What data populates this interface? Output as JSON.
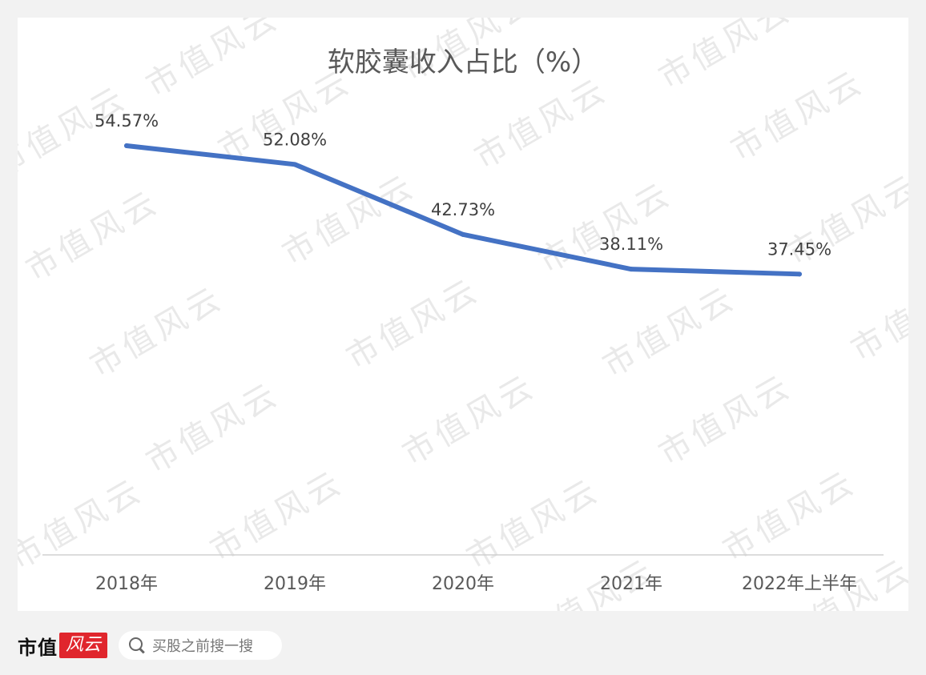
{
  "chart_data": {
    "type": "line",
    "title": "软胶囊收入占比（%）",
    "categories": [
      "2018年",
      "2019年",
      "2020年",
      "2021年",
      "2022年上半年"
    ],
    "series": [
      {
        "values": [
          54.57,
          52.08,
          42.73,
          38.11,
          37.45
        ],
        "labels": [
          "54.57%",
          "52.08%",
          "42.73%",
          "38.11%",
          "37.45%"
        ],
        "color": "#4472c4"
      }
    ],
    "xlabel": "",
    "ylabel": "",
    "ylim": [
      0,
      70
    ],
    "grid": false,
    "legend": "none"
  },
  "watermark": "市值风云",
  "footer": {
    "brand_text": "市值",
    "brand_logo": "风云",
    "search_icon": "search-icon",
    "search_placeholder": "买股之前搜一搜"
  }
}
